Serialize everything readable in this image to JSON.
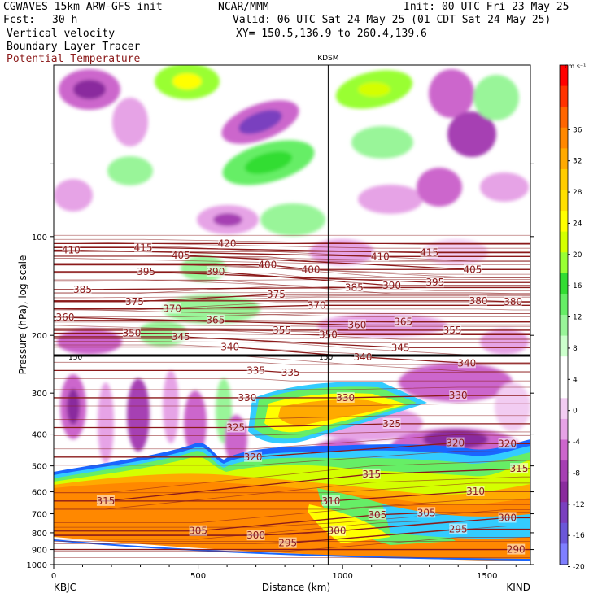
{
  "header": {
    "model": "CGWAVES 15km ARW-GFS init",
    "org": "NCAR/MMM",
    "init": "Init: 00 UTC Fri 23 May 25",
    "fcst_label": "Fcst:",
    "fcst_value": "30 h",
    "valid": "Valid: 06 UTC Sat 24 May 25 (01 CDT Sat 24 May 25)",
    "field1": "Vertical velocity",
    "field2": "Boundary Layer Tracer",
    "field3": "Potential Temperature",
    "xy": "XY= 150.5,136.9 to 260.4,139.6"
  },
  "colors": {
    "theta_line": "#8b1a1a",
    "station_line": "#000000"
  },
  "chart_data": {
    "type": "heatmap",
    "ylabel": "Pressure (hPa), log scale",
    "xlabel": "Distance (km)",
    "yscale": "log",
    "ylim": [
      1000,
      30
    ],
    "xlim": [
      0,
      1650
    ],
    "yticks": [
      100,
      200,
      300,
      400,
      500,
      600,
      700,
      800,
      900,
      1000
    ],
    "xticks": [
      0,
      500,
      1000,
      1500
    ],
    "station_marker": {
      "label": "KDSM",
      "x": 950
    },
    "left_station": "KBJC",
    "right_station": "KIND",
    "colorbar": {
      "unit": "cm s⁻¹",
      "levels": [
        36,
        32,
        28,
        24,
        20,
        16,
        12,
        8,
        4,
        0,
        -4,
        -8,
        -12,
        -16,
        -20
      ],
      "colors": [
        "#ff0000",
        "#ff3300",
        "#ff6600",
        "#ff8800",
        "#ffaa00",
        "#ffcc00",
        "#ffe000",
        "#ffff00",
        "#d4ff00",
        "#99ff33",
        "#33dd33",
        "#66ee66",
        "#99f599",
        "#ccffcc",
        "#ffffff",
        "#ffffff",
        "#f2ccf2",
        "#e6a3e6",
        "#cc66cc",
        "#a63fb3",
        "#8a2b9e",
        "#7a3fbf",
        "#6b57d9",
        "#7f7fff"
      ]
    },
    "tropopause_labels": [
      "150",
      "150"
    ],
    "theta_labels": [
      {
        "text": "410",
        "x": 60,
        "p": 110
      },
      {
        "text": "415",
        "x": 310,
        "p": 108
      },
      {
        "text": "405",
        "x": 440,
        "p": 114
      },
      {
        "text": "420",
        "x": 600,
        "p": 105
      },
      {
        "text": "395",
        "x": 320,
        "p": 128
      },
      {
        "text": "390",
        "x": 560,
        "p": 128
      },
      {
        "text": "400",
        "x": 740,
        "p": 122
      },
      {
        "text": "400",
        "x": 890,
        "p": 126
      },
      {
        "text": "410",
        "x": 1130,
        "p": 115
      },
      {
        "text": "415",
        "x": 1300,
        "p": 112
      },
      {
        "text": "405",
        "x": 1450,
        "p": 126
      },
      {
        "text": "385",
        "x": 100,
        "p": 145
      },
      {
        "text": "375",
        "x": 280,
        "p": 158
      },
      {
        "text": "370",
        "x": 410,
        "p": 166
      },
      {
        "text": "375",
        "x": 770,
        "p": 150
      },
      {
        "text": "370",
        "x": 910,
        "p": 162
      },
      {
        "text": "385",
        "x": 1040,
        "p": 143
      },
      {
        "text": "390",
        "x": 1170,
        "p": 141
      },
      {
        "text": "395",
        "x": 1320,
        "p": 138
      },
      {
        "text": "380",
        "x": 1470,
        "p": 157
      },
      {
        "text": "380",
        "x": 1590,
        "p": 158
      },
      {
        "text": "360",
        "x": 0,
        "p": 176
      },
      {
        "text": "365",
        "x": 560,
        "p": 180
      },
      {
        "text": "360",
        "x": 1050,
        "p": 186
      },
      {
        "text": "365",
        "x": 1210,
        "p": 182
      },
      {
        "text": "350",
        "x": 270,
        "p": 197
      },
      {
        "text": "345",
        "x": 440,
        "p": 202
      },
      {
        "text": "355",
        "x": 790,
        "p": 193
      },
      {
        "text": "350",
        "x": 950,
        "p": 199
      },
      {
        "text": "355",
        "x": 1380,
        "p": 193
      },
      {
        "text": "340",
        "x": 610,
        "p": 217
      },
      {
        "text": "345",
        "x": 1200,
        "p": 218
      },
      {
        "text": "340",
        "x": 1070,
        "p": 233
      },
      {
        "text": "340",
        "x": 1430,
        "p": 243
      },
      {
        "text": "335",
        "x": 700,
        "p": 256
      },
      {
        "text": "335",
        "x": 820,
        "p": 260
      },
      {
        "text": "330",
        "x": 670,
        "p": 310
      },
      {
        "text": "330",
        "x": 1010,
        "p": 310
      },
      {
        "text": "330",
        "x": 1400,
        "p": 305
      },
      {
        "text": "325",
        "x": 630,
        "p": 382
      },
      {
        "text": "325",
        "x": 1170,
        "p": 372
      },
      {
        "text": "320",
        "x": 690,
        "p": 470
      },
      {
        "text": "320",
        "x": 1390,
        "p": 426
      },
      {
        "text": "320",
        "x": 1570,
        "p": 428
      },
      {
        "text": "315",
        "x": 180,
        "p": 640
      },
      {
        "text": "315",
        "x": 1100,
        "p": 530
      },
      {
        "text": "315",
        "x": 1620,
        "p": 510
      },
      {
        "text": "310",
        "x": 960,
        "p": 640
      },
      {
        "text": "310",
        "x": 1460,
        "p": 598
      },
      {
        "text": "305",
        "x": 1120,
        "p": 705
      },
      {
        "text": "305",
        "x": 1290,
        "p": 695
      },
      {
        "text": "305",
        "x": 500,
        "p": 790
      },
      {
        "text": "300",
        "x": 700,
        "p": 815
      },
      {
        "text": "300",
        "x": 980,
        "p": 790
      },
      {
        "text": "300",
        "x": 1570,
        "p": 720
      },
      {
        "text": "295",
        "x": 810,
        "p": 860
      },
      {
        "text": "295",
        "x": 1400,
        "p": 780
      },
      {
        "text": "290",
        "x": 1600,
        "p": 900
      }
    ]
  }
}
